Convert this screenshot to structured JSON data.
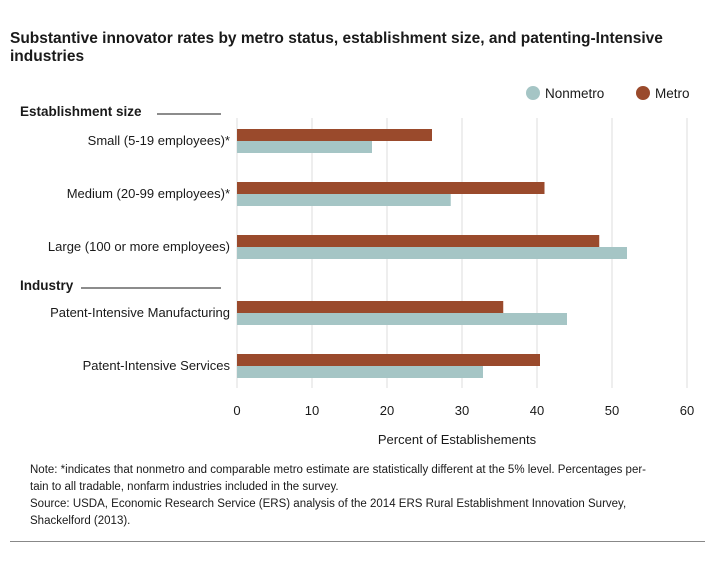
{
  "title": "Substantive innovator rates by metro status, establishment size, and patenting-Intensive industries",
  "chart_data": {
    "type": "bar",
    "orientation": "horizontal",
    "title": "Substantive innovator rates by metro status, establishment size, and patenting-Intensive industries",
    "xlabel": "Percent of Establishements",
    "xlim": [
      0,
      60
    ],
    "xticks": [
      0,
      10,
      20,
      30,
      40,
      50,
      60
    ],
    "grid": true,
    "legend_position": "top-right",
    "groups": [
      {
        "label": "Establishment size",
        "categories": [
          "Small (5-19 employees)*",
          "Medium (20-99 employees)*",
          "Large (100 or more employees)"
        ]
      },
      {
        "label": "Industry",
        "categories": [
          "Patent-Intensive Manufacturing",
          "Patent-Intensive Services"
        ]
      }
    ],
    "categories": [
      "Small (5-19 employees)*",
      "Medium (20-99 employees)*",
      "Large (100 or more employees)",
      "Patent-Intensive Manufacturing",
      "Patent-Intensive Services"
    ],
    "series": [
      {
        "name": "Metro",
        "color": "#9a4a2c",
        "values": [
          26,
          41,
          48.3,
          35.5,
          40.4
        ]
      },
      {
        "name": "Nonmetro",
        "color": "#a5c5c5",
        "values": [
          18,
          28.5,
          52,
          44,
          32.8
        ]
      }
    ]
  },
  "legend": {
    "nonmetro": "Nonmetro",
    "metro": "Metro"
  },
  "note": {
    "line1": "Note: *indicates that nonmetro and comparable metro estimate are statistically different at the 5% level. Percentages per-",
    "line2": "tain to all tradable, nonfarm industries included in the survey.",
    "line3": "Source: USDA, Economic Research Service (ERS) analysis of the 2014 ERS Rural Establishment Innovation Survey,",
    "line4": "Shackelford (2013)."
  }
}
